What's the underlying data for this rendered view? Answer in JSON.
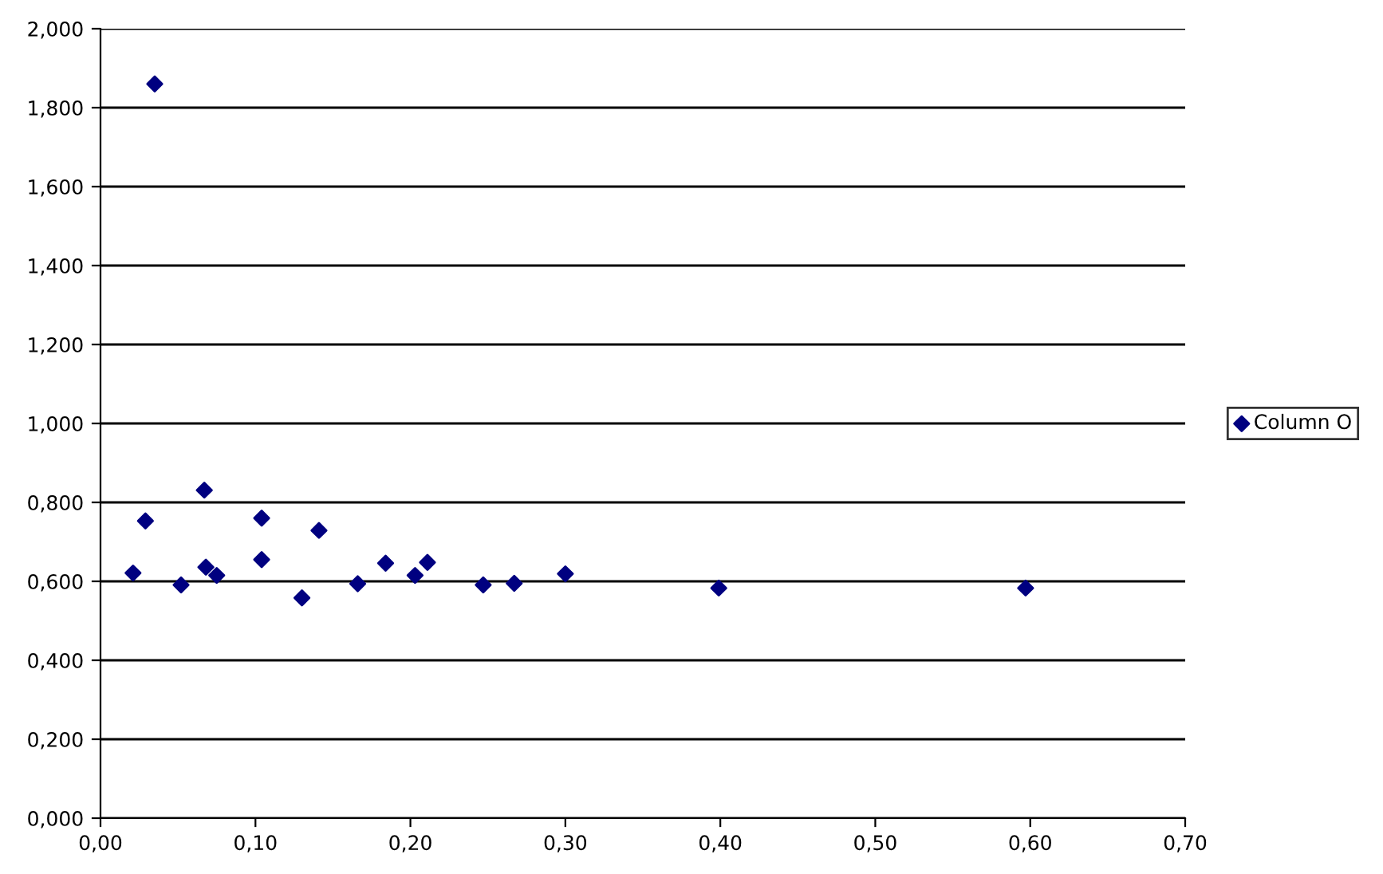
{
  "chart_data": {
    "type": "scatter",
    "marker": "diamond",
    "grid": "y",
    "legend": "right",
    "xlim": [
      0,
      0.7
    ],
    "xticks": [
      {
        "value": 0,
        "label": "0,00"
      },
      {
        "value": 0.1,
        "label": "0,10"
      },
      {
        "value": 0.2,
        "label": "0,20"
      },
      {
        "value": 0.3,
        "label": "0,30"
      },
      {
        "value": 0.4,
        "label": "0,40"
      },
      {
        "value": 0.5,
        "label": "0,50"
      },
      {
        "value": 0.6,
        "label": "0,60"
      },
      {
        "value": 0.7,
        "label": "0,70"
      }
    ],
    "ylim": [
      0,
      2
    ],
    "yticks": [
      {
        "value": 0,
        "label": "0,000"
      },
      {
        "value": 0.2,
        "label": "0,200"
      },
      {
        "value": 0.4,
        "label": "0,400"
      },
      {
        "value": 0.6,
        "label": "0,600"
      },
      {
        "value": 0.8,
        "label": "0,800"
      },
      {
        "value": 1.0,
        "label": "1,000"
      },
      {
        "value": 1.2,
        "label": "1,200"
      },
      {
        "value": 1.4,
        "label": "1,400"
      },
      {
        "value": 1.6,
        "label": "1,600"
      },
      {
        "value": 1.8,
        "label": "1,800"
      },
      {
        "value": 2.0,
        "label": "2,000"
      }
    ],
    "series": [
      {
        "name": "Column O",
        "color": "#000080",
        "x": [
          0.021,
          0.029,
          0.035,
          0.052,
          0.067,
          0.068,
          0.075,
          0.104,
          0.104,
          0.13,
          0.141,
          0.166,
          0.184,
          0.203,
          0.211,
          0.247,
          0.267,
          0.3,
          0.399,
          0.597
        ],
        "values": [
          0.621,
          0.753,
          1.86,
          0.591,
          0.831,
          0.636,
          0.615,
          0.76,
          0.655,
          0.558,
          0.729,
          0.594,
          0.646,
          0.615,
          0.648,
          0.591,
          0.595,
          0.619,
          0.583,
          0.583
        ]
      }
    ]
  }
}
